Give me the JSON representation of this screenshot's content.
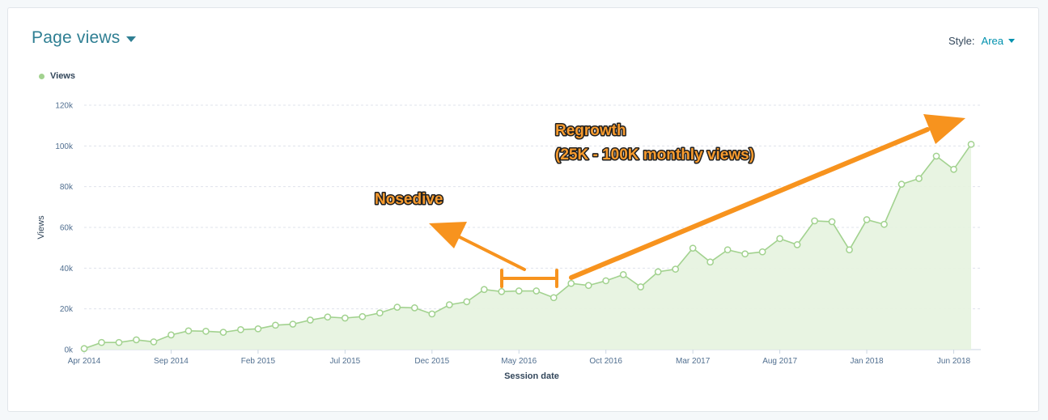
{
  "header": {
    "title": "Page views",
    "style_label": "Style:",
    "style_value": "Area"
  },
  "colors": {
    "accent": "#2f7f93",
    "series_line": "#a2d28f",
    "series_fill": "#e5f3df",
    "annotation": "#f7931e",
    "gridline": "#dfe3eb"
  },
  "chart_data": {
    "type": "area",
    "legend": {
      "position": "top-left",
      "entries": [
        "Views"
      ]
    },
    "series": [
      {
        "name": "Views",
        "values": [
          500,
          3500,
          3500,
          4800,
          3800,
          7200,
          9200,
          9000,
          8500,
          9800,
          10200,
          12000,
          12500,
          14500,
          16000,
          15500,
          16200,
          18000,
          20800,
          20500,
          17500,
          22000,
          23500,
          29500,
          28500,
          28800,
          28800,
          25500,
          32500,
          31500,
          33800,
          36800,
          30800,
          38200,
          39500,
          49800,
          43000,
          49000,
          47000,
          48000,
          54500,
          51500,
          63200,
          62800,
          49000,
          63800,
          61500,
          81200,
          84000,
          95000,
          88500,
          100800
        ]
      }
    ],
    "x_start": "Apr 2014",
    "x_interval": "month",
    "x_ticks": [
      "Apr 2014",
      "Sep 2014",
      "Feb 2015",
      "Jul 2015",
      "Dec 2015",
      "May 2016",
      "Oct 2016",
      "Mar 2017",
      "Aug 2017",
      "Jan 2018",
      "Jun 2018"
    ],
    "x_tick_index_step": 5,
    "y_ticks": [
      "0k",
      "20k",
      "40k",
      "60k",
      "80k",
      "100k",
      "120k"
    ],
    "ylim": [
      0,
      120000
    ],
    "xlabel": "Session date",
    "ylabel": "Views",
    "grid": true,
    "annotations": [
      {
        "text": "Nosedive"
      },
      {
        "lines": [
          "Regrowth",
          "(25K - 100K monthly views)"
        ]
      }
    ]
  }
}
